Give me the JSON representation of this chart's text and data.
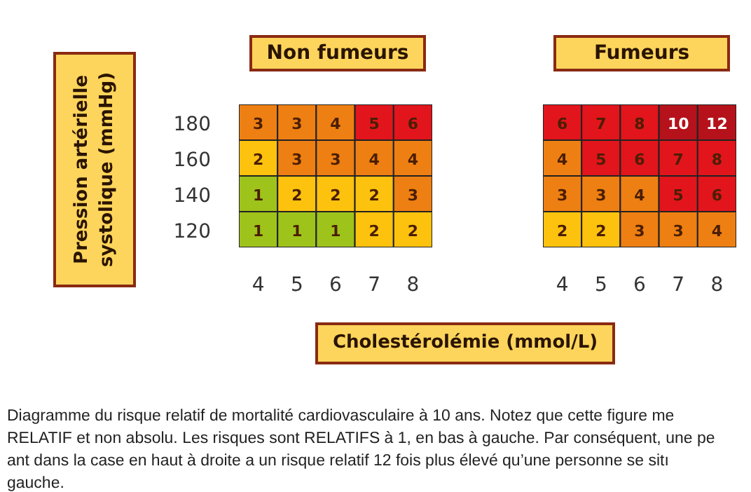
{
  "chart_data": [
    {
      "type": "heatmap",
      "title": "Non fumeurs",
      "ylabel": "Pression artérielle systolique (mmHg)",
      "categories": [
        "4",
        "5",
        "6",
        "7",
        "8"
      ],
      "y_categories": [
        "180",
        "160",
        "140",
        "120"
      ],
      "cells": [
        [
          3,
          3,
          4,
          5,
          6
        ],
        [
          2,
          3,
          3,
          4,
          4
        ],
        [
          1,
          2,
          2,
          2,
          3
        ],
        [
          1,
          1,
          1,
          2,
          2
        ]
      ],
      "colors": [
        [
          "#ee7f12",
          "#ee7f12",
          "#ee7f12",
          "#e2151c",
          "#e2151c"
        ],
        [
          "#fcc20e",
          "#ee7f12",
          "#ee7f12",
          "#ee7f12",
          "#ee7f12"
        ],
        [
          "#9ec31b",
          "#fcc20e",
          "#fcc20e",
          "#fcc20e",
          "#ee7f12"
        ],
        [
          "#9ec31b",
          "#9ec31b",
          "#9ec31b",
          "#fcc20e",
          "#fcc20e"
        ]
      ],
      "data_labels": true,
      "annotations": [
        "Diagramme du risque relatif de mortalité cardiovasculaire à 10 ans. Notez que cette figure me",
        "RELATIF et non absolu. Les risques sont RELATIFS à 1, en bas à gauche. Par conséquent, une pe",
        "ant dans la case en haut à droite a un risque relatif 12 fois plus élevé qu’une personne se sitı",
        "gauche."
      ]
    },
    {
      "type": "heatmap",
      "title": "Fumeurs",
      "xlabel": "Cholestérolémie (mmol/L)",
      "categories": [
        "4",
        "5",
        "6",
        "7",
        "8"
      ],
      "y_categories": [
        "180",
        "160",
        "140",
        "120"
      ],
      "tick_labels": "x",
      "cells": [
        [
          6,
          7,
          8,
          10,
          12
        ],
        [
          4,
          5,
          6,
          7,
          8
        ],
        [
          3,
          3,
          4,
          5,
          6
        ],
        [
          2,
          2,
          3,
          3,
          4
        ]
      ],
      "colors": [
        [
          "#e2151c",
          "#e2151c",
          "#e2151c",
          "#b5121b",
          "#b5121b"
        ],
        [
          "#ee7f12",
          "#e2151c",
          "#e2151c",
          "#e2151c",
          "#e2151c"
        ],
        [
          "#ee7f12",
          "#ee7f12",
          "#ee7f12",
          "#e2151c",
          "#e2151c"
        ],
        [
          "#fcc20e",
          "#fcc20e",
          "#ee7f12",
          "#ee7f12",
          "#ee7f12"
        ]
      ],
      "data_labels": true
    }
  ]
}
